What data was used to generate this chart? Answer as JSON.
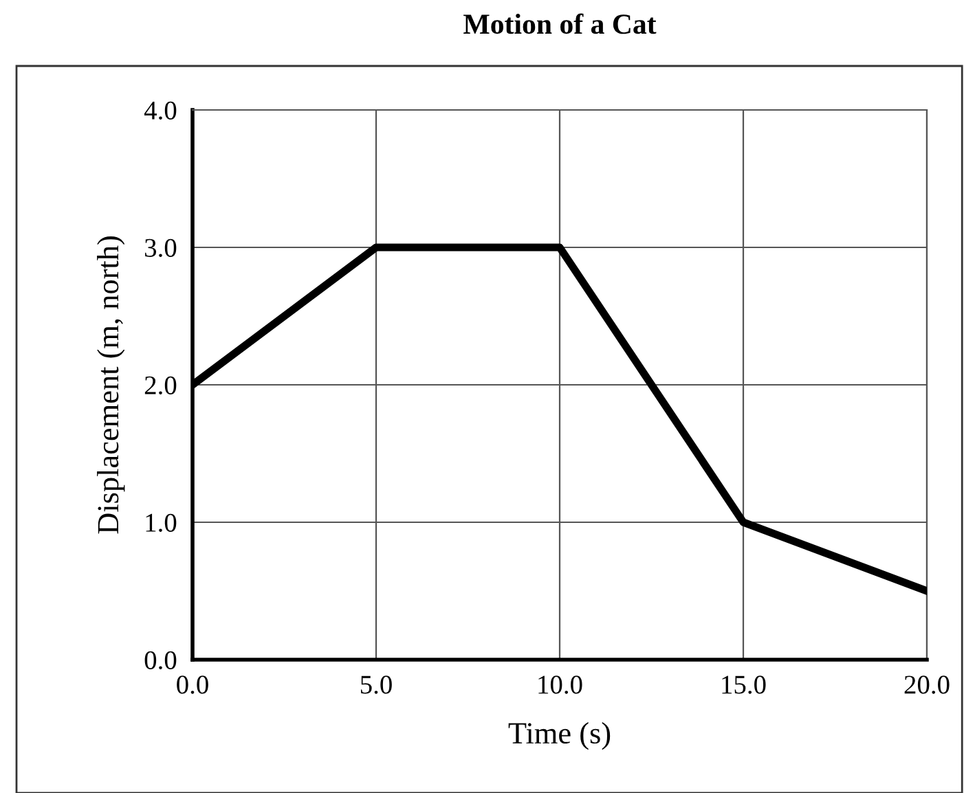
{
  "chart_data": {
    "type": "line",
    "title": "Motion of a Cat",
    "xlabel": "Time (s)",
    "ylabel": "Displacement (m, north)",
    "x": [
      0,
      5,
      10,
      15,
      20
    ],
    "series": [
      {
        "color": "#000000",
        "values": [
          2,
          3,
          3,
          1,
          0.5
        ]
      }
    ],
    "xlim": [
      0,
      20
    ],
    "ylim": [
      0,
      4
    ],
    "xticks": [
      {
        "value": 0,
        "label": "0.0"
      },
      {
        "value": 5,
        "label": "5.0"
      },
      {
        "value": 10,
        "label": "10.0"
      },
      {
        "value": 15,
        "label": "15.0"
      },
      {
        "value": 20,
        "label": "20.0"
      }
    ],
    "yticks": [
      {
        "value": 0,
        "label": "0.0"
      },
      {
        "value": 1,
        "label": "1.0"
      },
      {
        "value": 2,
        "label": "2.0"
      },
      {
        "value": 3,
        "label": "3.0"
      },
      {
        "value": 4,
        "label": "4.0"
      }
    ],
    "grid": true,
    "legend": false,
    "marker": "none",
    "line_style": "solid"
  }
}
